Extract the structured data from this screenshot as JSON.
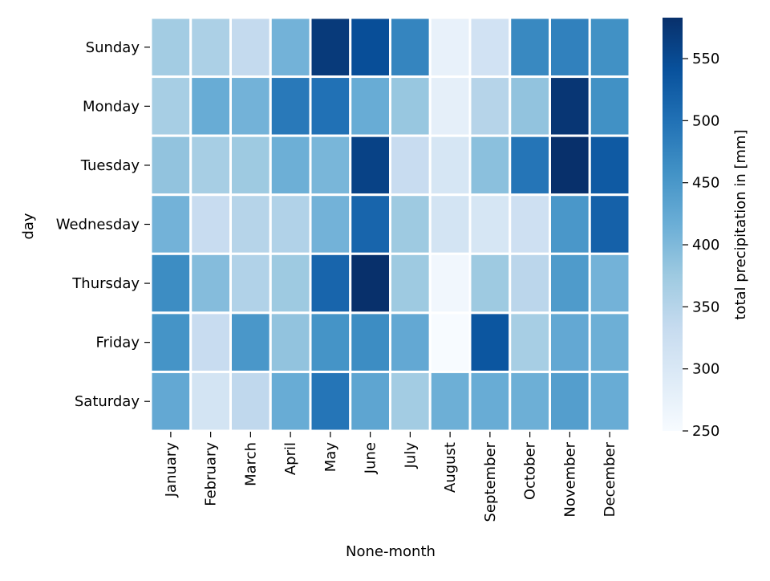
{
  "chart_data": {
    "type": "heatmap",
    "title": "",
    "xlabel": "None-month",
    "ylabel": "day",
    "x_categories": [
      "January",
      "February",
      "March",
      "April",
      "May",
      "June",
      "July",
      "August",
      "September",
      "October",
      "November",
      "December"
    ],
    "y_categories": [
      "Sunday",
      "Monday",
      "Tuesday",
      "Wednesday",
      "Thursday",
      "Friday",
      "Saturday"
    ],
    "values": [
      [
        370,
        360,
        335,
        410,
        570,
        545,
        475,
        275,
        315,
        470,
        480,
        460
      ],
      [
        365,
        420,
        410,
        490,
        500,
        420,
        380,
        280,
        350,
        385,
        575,
        460
      ],
      [
        385,
        365,
        375,
        415,
        405,
        560,
        330,
        305,
        390,
        495,
        585,
        530
      ],
      [
        410,
        330,
        350,
        355,
        410,
        515,
        375,
        310,
        305,
        320,
        450,
        520
      ],
      [
        465,
        395,
        355,
        375,
        515,
        585,
        375,
        260,
        375,
        345,
        445,
        410
      ],
      [
        455,
        330,
        450,
        385,
        455,
        465,
        425,
        250,
        535,
        365,
        425,
        415
      ],
      [
        425,
        310,
        340,
        420,
        495,
        430,
        370,
        415,
        420,
        415,
        440,
        420
      ]
    ],
    "colormap": "Blues",
    "vmin": 250,
    "vmax": 583,
    "colorbar": {
      "label": "total precipitation in [mm]",
      "ticks": [
        250,
        300,
        350,
        400,
        450,
        500,
        550
      ]
    },
    "grid": false,
    "cell_border_color": "#ffffff"
  }
}
